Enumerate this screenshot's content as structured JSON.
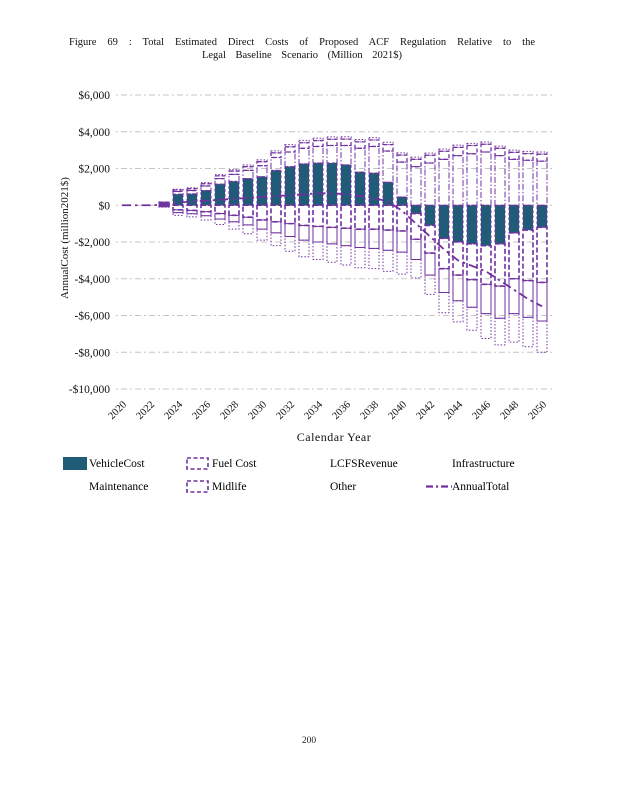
{
  "page": {
    "footer_page_number": "200"
  },
  "figure": {
    "title_line1": "Figure 69 : Total Estimated Direct Costs of Proposed ACF Regulation Relative to the",
    "title_line2": "Legal Baseline Scenario (Million 2021$)"
  },
  "chart_data": {
    "type": "bar",
    "stacked": true,
    "grid": true,
    "legend_position": "bottom",
    "title": "Figure 69: Total Estimated Direct Costs of Proposed ACF Regulation Relative to the Legal Baseline Scenario (Million 2021$)",
    "xlabel": "Calendar Year",
    "ylabel": "AnnualCost (million2021$)",
    "ylim": [
      -10000,
      6000
    ],
    "ytick_step": 2000,
    "ytick_labels": [
      "$6,000",
      "$4,000",
      "$2,000",
      "$0",
      "-$2,000",
      "-$4,000",
      "-$6,000",
      "-$8,000",
      "-$10,000"
    ],
    "years": [
      2020,
      2021,
      2022,
      2023,
      2024,
      2025,
      2026,
      2027,
      2028,
      2029,
      2030,
      2031,
      2032,
      2033,
      2034,
      2035,
      2036,
      2037,
      2038,
      2039,
      2040,
      2041,
      2042,
      2043,
      2044,
      2045,
      2046,
      2047,
      2048,
      2049,
      2050
    ],
    "xtick_labels": [
      "2020",
      "2022",
      "2024",
      "2026",
      "2028",
      "2030",
      "2032",
      "2034",
      "2036",
      "2038",
      "2040",
      "2042",
      "2044",
      "2046",
      "2048",
      "2050"
    ],
    "colors": {
      "vehicle_fill": "#205C78",
      "outline_purple": "#7030A0",
      "grid": "#C6C6C6",
      "text": "#111111"
    },
    "series": [
      {
        "name": "VehicleCost",
        "style": "teal-fill",
        "values": [
          0,
          0,
          0,
          100,
          600,
          620,
          800,
          1150,
          1300,
          1450,
          1550,
          1900,
          2100,
          2250,
          2300,
          2300,
          2200,
          1800,
          1750,
          1250,
          450,
          -450,
          -1100,
          -1800,
          -2000,
          -2100,
          -2200,
          -2100,
          -1500,
          -1350,
          -1200
        ]
      },
      {
        "name": "Infrastructure",
        "style": "dashdot-outline",
        "values": [
          0,
          0,
          0,
          50,
          150,
          180,
          250,
          300,
          380,
          450,
          600,
          700,
          800,
          850,
          900,
          950,
          1050,
          1300,
          1450,
          1700,
          1900,
          2100,
          2300,
          2500,
          2700,
          2800,
          2900,
          2700,
          2500,
          2450,
          2400
        ]
      },
      {
        "name": "Midlife",
        "style": "dashed-outline",
        "values": [
          0,
          0,
          0,
          20,
          80,
          100,
          120,
          150,
          180,
          200,
          220,
          250,
          280,
          300,
          320,
          340,
          350,
          350,
          350,
          350,
          380,
          400,
          420,
          440,
          450,
          450,
          420,
          400,
          380,
          360,
          380
        ]
      },
      {
        "name": "Other",
        "style": "dotted-outline",
        "values": [
          0,
          0,
          0,
          10,
          40,
          50,
          60,
          70,
          80,
          90,
          100,
          110,
          120,
          130,
          130,
          130,
          130,
          130,
          130,
          130,
          120,
          120,
          120,
          120,
          120,
          120,
          120,
          120,
          120,
          120,
          120
        ]
      },
      {
        "name": "Fuel Cost",
        "style": "heavy-dashed-outline",
        "values": [
          0,
          0,
          0,
          -50,
          -250,
          -280,
          -350,
          -450,
          -550,
          -650,
          -800,
          -900,
          -1000,
          -1100,
          -1150,
          -1200,
          -1250,
          -1300,
          -1300,
          -1350,
          -1400,
          -1400,
          -1500,
          -1650,
          -1800,
          -1950,
          -2100,
          -2300,
          -2500,
          -2750,
          -3000
        ]
      },
      {
        "name": "Maintenance",
        "style": "solid-outline",
        "values": [
          0,
          0,
          0,
          -30,
          -150,
          -180,
          -220,
          -300,
          -350,
          -420,
          -500,
          -600,
          -700,
          -800,
          -850,
          -900,
          -950,
          -1000,
          -1050,
          -1100,
          -1150,
          -1100,
          -1200,
          -1300,
          -1400,
          -1500,
          -1600,
          -1750,
          -1900,
          -2000,
          -2100
        ]
      },
      {
        "name": "LCFSRevenue",
        "style": "dotted-outline",
        "values": [
          0,
          0,
          0,
          -20,
          -150,
          -170,
          -230,
          -300,
          -400,
          -480,
          -600,
          -700,
          -800,
          -900,
          -950,
          -1000,
          -1050,
          -1100,
          -1100,
          -1150,
          -1200,
          -1000,
          -1050,
          -1100,
          -1150,
          -1250,
          -1350,
          -1450,
          -1550,
          -1600,
          -1700
        ]
      }
    ],
    "line_series": {
      "name": "AnnualTotal",
      "style": "dashdot-line",
      "values": [
        0,
        0,
        0,
        30,
        150,
        200,
        250,
        300,
        350,
        400,
        450,
        500,
        550,
        600,
        650,
        650,
        600,
        500,
        400,
        200,
        -300,
        -1000,
        -1700,
        -2400,
        -3000,
        -3300,
        -3600,
        -4100,
        -4600,
        -5100,
        -5500
      ]
    },
    "legend": {
      "rows": [
        [
          {
            "label": "VehicleCost",
            "swatch": "teal-fill"
          },
          {
            "label": "Fuel Cost",
            "swatch": "dashed-box"
          },
          {
            "label": "LCFSRevenue",
            "swatch": "none"
          },
          {
            "label": "Infrastructure",
            "swatch": "none"
          }
        ],
        [
          {
            "label": "Maintenance",
            "swatch": "none"
          },
          {
            "label": "Midlife",
            "swatch": "dashed-box"
          },
          {
            "label": "Other",
            "swatch": "none"
          },
          {
            "label": "AnnualTotal",
            "swatch": "dashdot-line"
          }
        ]
      ]
    }
  }
}
